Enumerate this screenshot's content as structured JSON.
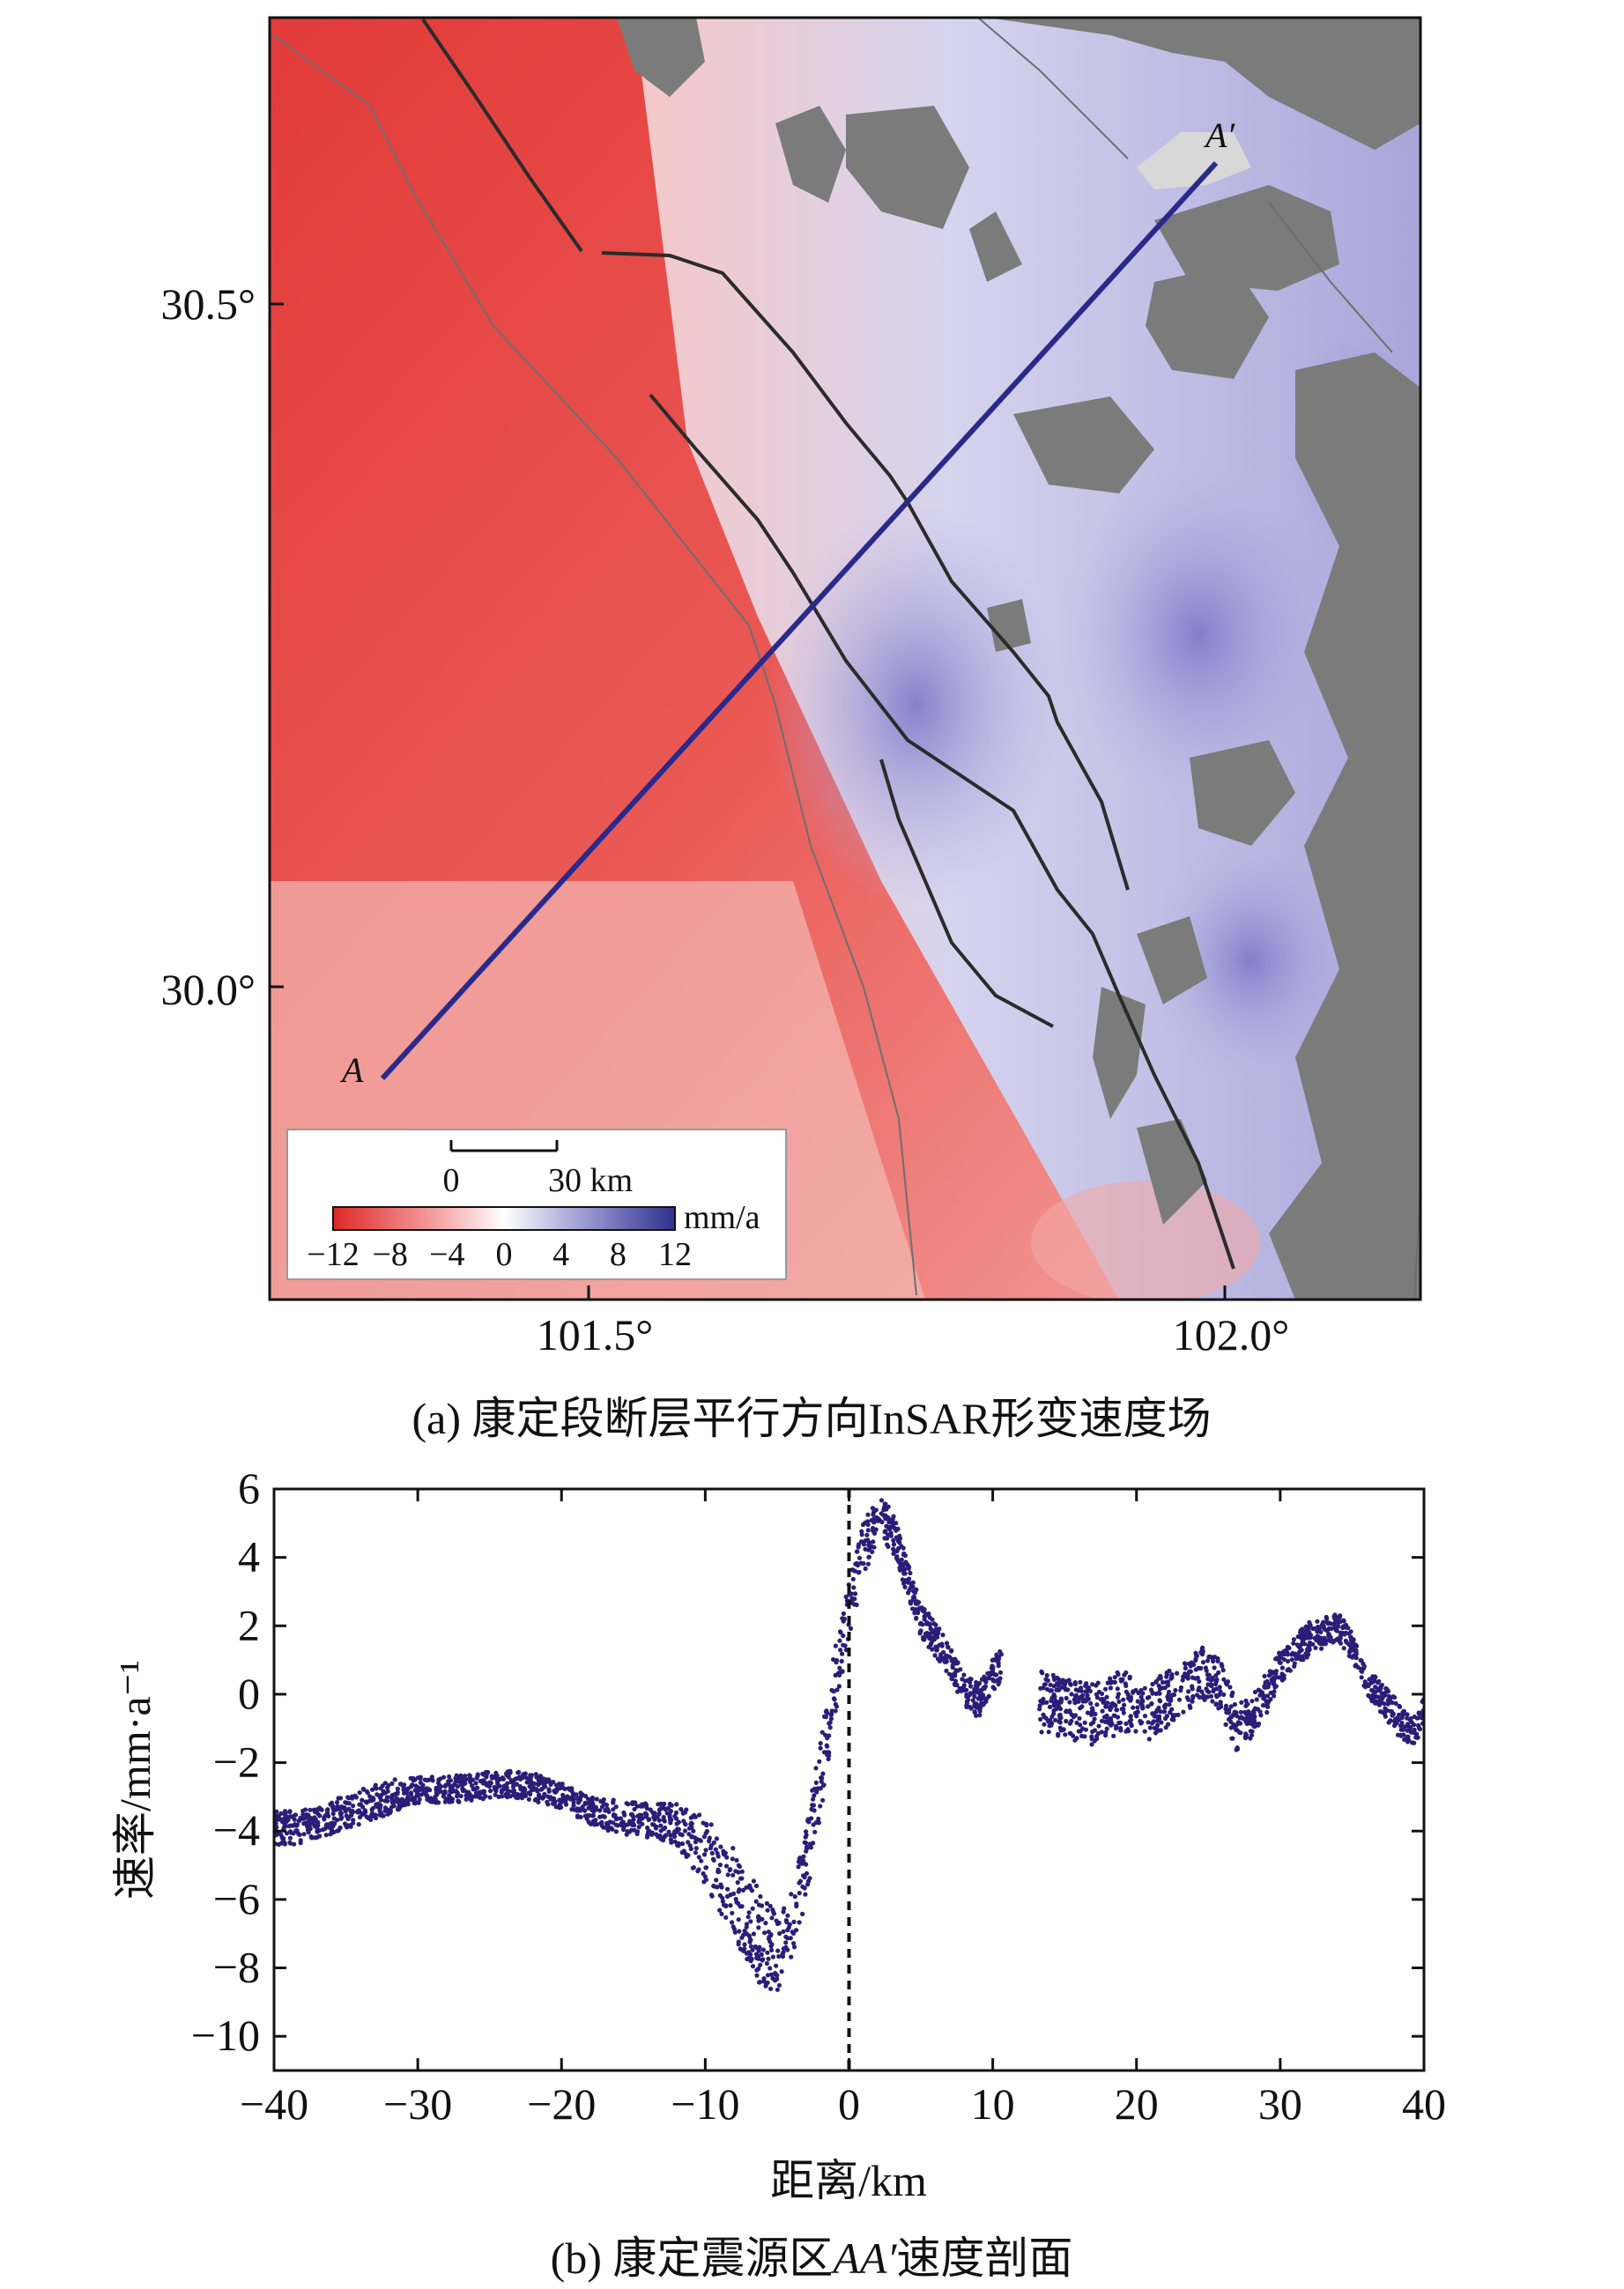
{
  "panel_a": {
    "caption": "(a) 康定段断层平行方向InSAR形变速度场",
    "lat_ticks": [
      "30.5°",
      "30.0°"
    ],
    "lon_ticks": [
      "101.5°",
      "102.0°"
    ],
    "point_a": "A",
    "point_a_prime": "A′",
    "scale_bar": {
      "start": "0",
      "end": "30 km"
    },
    "colorbar": {
      "unit": "mm/a",
      "ticks": [
        "−12",
        "−8",
        "−4",
        "0",
        "4",
        "8",
        "12"
      ],
      "min": -12,
      "max": 12
    }
  },
  "panel_b": {
    "caption_prefix": "(b) 康定震源区",
    "caption_italic": "AA′",
    "caption_suffix": "速度剖面",
    "ylabel": "速率/mm·a⁻¹",
    "xlabel": "距离/km"
  },
  "colors": {
    "profile_line": "#2a2a8c",
    "scatter": "#2b1d78",
    "neg": "#e03030",
    "pos": "#3a3aa0",
    "mask": "#7a7a7a",
    "fault": "#2b2b2b"
  },
  "chart_data": {
    "type": "scatter",
    "title": "",
    "xlabel": "距离/km",
    "ylabel": "速率/mm·a⁻¹",
    "xlim": [
      -40,
      40
    ],
    "ylim": [
      -11,
      6
    ],
    "xticks": [
      -40,
      -30,
      -20,
      -10,
      0,
      10,
      20,
      30,
      40
    ],
    "yticks": [
      -10,
      -8,
      -6,
      -4,
      -2,
      0,
      2,
      4,
      6
    ],
    "reference_line_x": 0,
    "series": [
      {
        "x": [
          -40,
          -38,
          -36,
          -34,
          -32,
          -30,
          -28,
          -26,
          -24,
          -22,
          -20,
          -18,
          -16,
          -14,
          -12,
          -10,
          -8,
          -7,
          -6,
          -5,
          -4,
          -3,
          -2,
          -1,
          0,
          1,
          2,
          3,
          4,
          5,
          6,
          7,
          8,
          9,
          10,
          11,
          13,
          15,
          17,
          19,
          21,
          23,
          25,
          26,
          27,
          28,
          29,
          30,
          32,
          34,
          35,
          36,
          38,
          39,
          40
        ],
        "y": [
          -3.9,
          -3.9,
          -3.6,
          -3.3,
          -3.0,
          -2.8,
          -2.8,
          -2.7,
          -2.6,
          -2.7,
          -3.0,
          -3.4,
          -3.6,
          -3.7,
          -3.8,
          -4.6,
          -5.8,
          -6.5,
          -7.2,
          -7.5,
          -6.8,
          -5.0,
          -2.5,
          0.3,
          2.5,
          4.2,
          5.2,
          4.8,
          3.5,
          2.2,
          1.6,
          1.0,
          0.2,
          -0.2,
          0.6,
          1.0,
          -0.2,
          -0.4,
          -0.6,
          -0.2,
          -0.5,
          0.2,
          0.7,
          0.1,
          -1.0,
          -0.7,
          0.0,
          0.8,
          1.6,
          2.0,
          1.4,
          0.4,
          -0.6,
          -1.1,
          -0.6
        ],
        "spread": [
          0.5,
          0.5,
          0.5,
          0.5,
          0.5,
          0.4,
          0.4,
          0.4,
          0.4,
          0.4,
          0.4,
          0.4,
          0.5,
          0.5,
          0.6,
          1.0,
          1.3,
          1.4,
          1.4,
          1.2,
          1.0,
          1.0,
          1.2,
          1.0,
          0.8,
          0.8,
          0.7,
          0.6,
          0.5,
          0.5,
          0.5,
          0.5,
          0.5,
          0.5,
          0.5,
          0.5,
          0.9,
          0.9,
          0.9,
          0.9,
          0.9,
          0.8,
          0.8,
          0.8,
          0.7,
          0.6,
          0.6,
          0.5,
          0.5,
          0.4,
          0.4,
          0.4,
          0.5,
          0.5,
          0.5
        ]
      }
    ]
  }
}
